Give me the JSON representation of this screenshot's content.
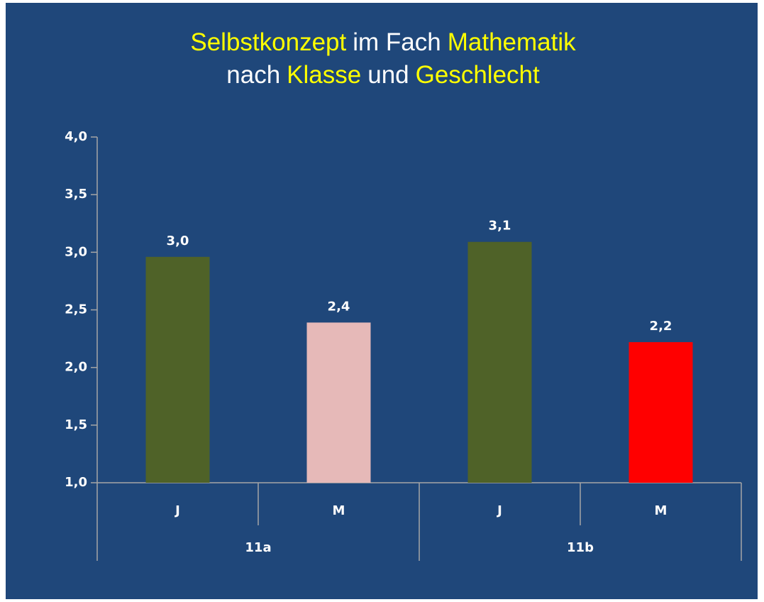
{
  "chart_data": {
    "type": "bar",
    "title_lines": [
      [
        {
          "text": "Selbstkonzept",
          "color": "#ffff00"
        },
        {
          "text": "im Fach",
          "color": "#ffffff"
        },
        {
          "text": "Mathematik",
          "color": "#ffff00"
        }
      ],
      [
        {
          "text": "nach",
          "color": "#ffffff"
        },
        {
          "text": "Klasse",
          "color": "#ffff00"
        },
        {
          "text": "und",
          "color": "#ffffff"
        },
        {
          "text": "Geschlecht",
          "color": "#ffff00"
        }
      ]
    ],
    "categories": [
      "J",
      "M",
      "J",
      "M"
    ],
    "groups": [
      "11a",
      "11b"
    ],
    "values": [
      2.96,
      2.39,
      3.09,
      2.22
    ],
    "value_labels": [
      "3,0",
      "2,4",
      "3,1",
      "2,2"
    ],
    "colors": [
      "#4f6228",
      "#e6b9b8",
      "#4f6228",
      "#ff0000"
    ],
    "ylim": [
      1,
      4
    ],
    "yticks": [
      {
        "value": 1,
        "label": "1,0"
      },
      {
        "value": 1.5,
        "label": "1,5"
      },
      {
        "value": 2,
        "label": "2,0"
      },
      {
        "value": 2.5,
        "label": "2,5"
      },
      {
        "value": 3,
        "label": "3,0"
      },
      {
        "value": 3.5,
        "label": "3,5"
      },
      {
        "value": 4,
        "label": "4,0"
      }
    ]
  }
}
